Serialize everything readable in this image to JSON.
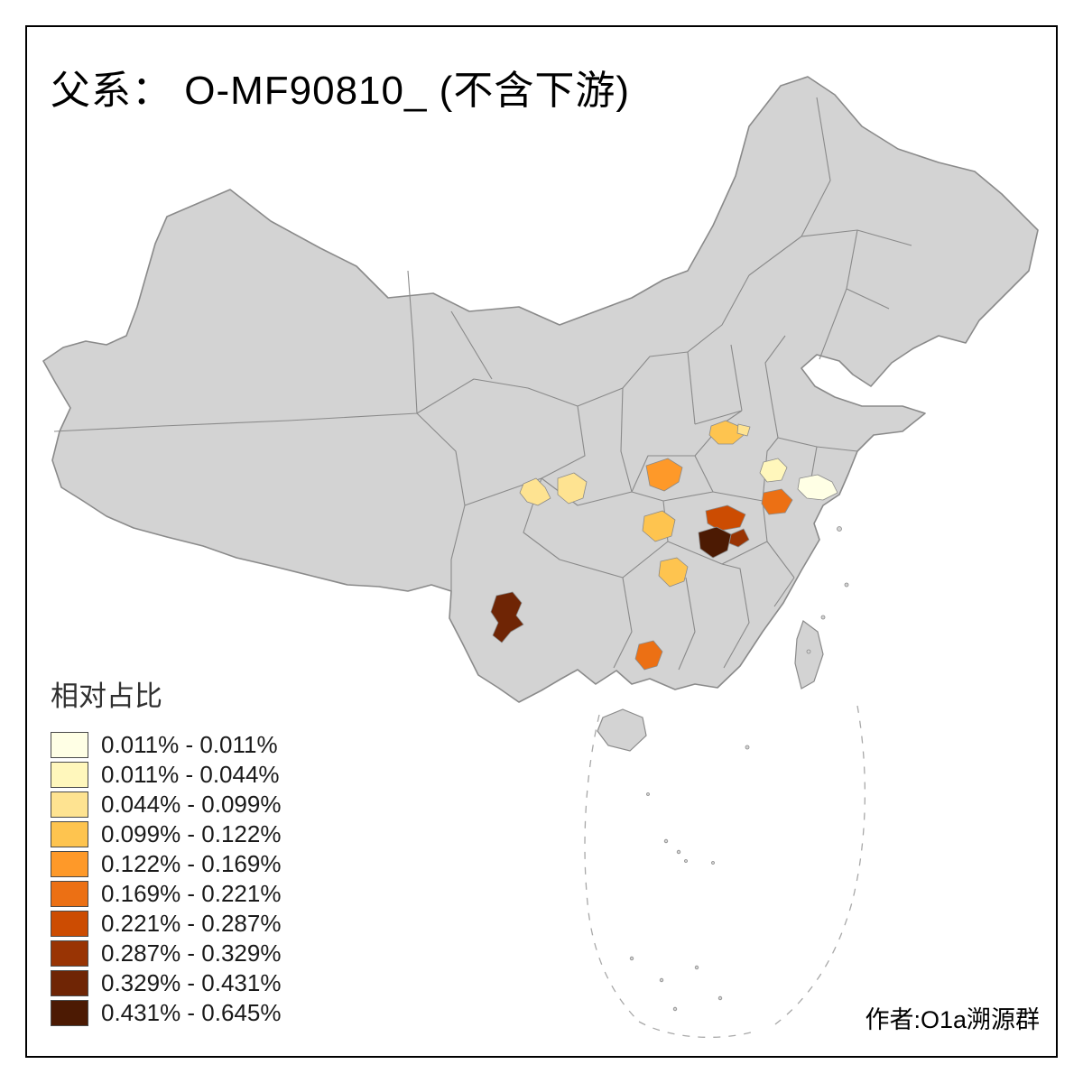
{
  "title": "父系： O-MF90810_ (不含下游)",
  "author": "作者:O1a溯源群",
  "legend": {
    "title": "相对占比",
    "entries": [
      {
        "label": "0.011% - 0.011%",
        "color": "#FFFFE5"
      },
      {
        "label": "0.011% - 0.044%",
        "color": "#FFF7BC"
      },
      {
        "label": "0.044% - 0.099%",
        "color": "#FEE391"
      },
      {
        "label": "0.099% - 0.122%",
        "color": "#FEC44F"
      },
      {
        "label": "0.122% - 0.169%",
        "color": "#FE9929"
      },
      {
        "label": "0.169% - 0.221%",
        "color": "#EC7014"
      },
      {
        "label": "0.221% - 0.287%",
        "color": "#CC4C02"
      },
      {
        "label": "0.287% - 0.329%",
        "color": "#993404"
      },
      {
        "label": "0.329% - 0.431%",
        "color": "#6F2505"
      },
      {
        "label": "0.431% - 0.645%",
        "color": "#4C1A03"
      }
    ]
  },
  "map": {
    "base_fill": "#D3D3D3",
    "border_color": "#8A8A8A",
    "background": "#FFFFFF",
    "highlighted_regions": [
      {
        "id": "region-1",
        "color": "#FEC44F"
      },
      {
        "id": "region-2",
        "color": "#FEE391"
      },
      {
        "id": "region-3",
        "color": "#FE9929"
      },
      {
        "id": "region-4",
        "color": "#FEE391"
      },
      {
        "id": "region-5",
        "color": "#FEE391"
      },
      {
        "id": "region-6",
        "color": "#FFF7BC"
      },
      {
        "id": "region-7",
        "color": "#FFFFE5"
      },
      {
        "id": "region-8",
        "color": "#EC7014"
      },
      {
        "id": "region-9",
        "color": "#CC4C02"
      },
      {
        "id": "region-10",
        "color": "#993404"
      },
      {
        "id": "region-11",
        "color": "#4C1A03"
      },
      {
        "id": "region-12",
        "color": "#FEC44F"
      },
      {
        "id": "region-13",
        "color": "#FEC44F"
      },
      {
        "id": "region-14",
        "color": "#6F2505"
      },
      {
        "id": "region-15",
        "color": "#EC7014"
      }
    ]
  }
}
